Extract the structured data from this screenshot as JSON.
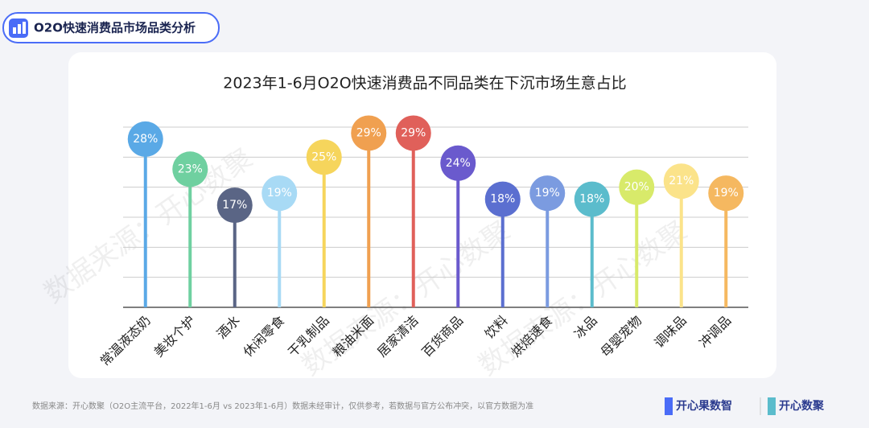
{
  "header": {
    "title": "O2O快速消费品市场品类分析"
  },
  "chart_data": {
    "type": "lollipop",
    "title": "2023年1-6月O2O快速消费品不同品类在下沉市场生意占比",
    "categories": [
      "常温液态奶",
      "美妆个护",
      "酒水",
      "休闲零食",
      "干乳制品",
      "粮油米面",
      "居家清洁",
      "百货商品",
      "饮料",
      "烘焙速食",
      "冰品",
      "母婴宠物",
      "调味品",
      "冲调品"
    ],
    "values": [
      28,
      23,
      17,
      19,
      25,
      29,
      29,
      24,
      18,
      19,
      18,
      20,
      21,
      19
    ],
    "value_labels": [
      "28%",
      "23%",
      "17%",
      "19%",
      "25%",
      "29%",
      "29%",
      "24%",
      "18%",
      "19%",
      "18%",
      "20%",
      "21%",
      "19%"
    ],
    "colors": [
      "#5aa9e6",
      "#6fd0a0",
      "#5a6585",
      "#a8daf5",
      "#f6d55c",
      "#f0a050",
      "#e0605a",
      "#6a5acd",
      "#5b6fd0",
      "#7b9be0",
      "#5bbccc",
      "#d8ea6a",
      "#fbe38a",
      "#f5b860"
    ],
    "ylim": [
      0,
      30
    ],
    "yticks": [
      0,
      5,
      10,
      15,
      20,
      25,
      30
    ],
    "grid": true
  },
  "watermark": "数据来源：开心数聚",
  "footer": {
    "source": "数据来源：开心数聚（O2O主流平台，2022年1-6月 vs 2023年1-6月）数据未经审计，仅供参考，若数据与官方公布冲突，以官方数据为准",
    "logo1": "开心果数智",
    "logo2": "开心数聚"
  }
}
